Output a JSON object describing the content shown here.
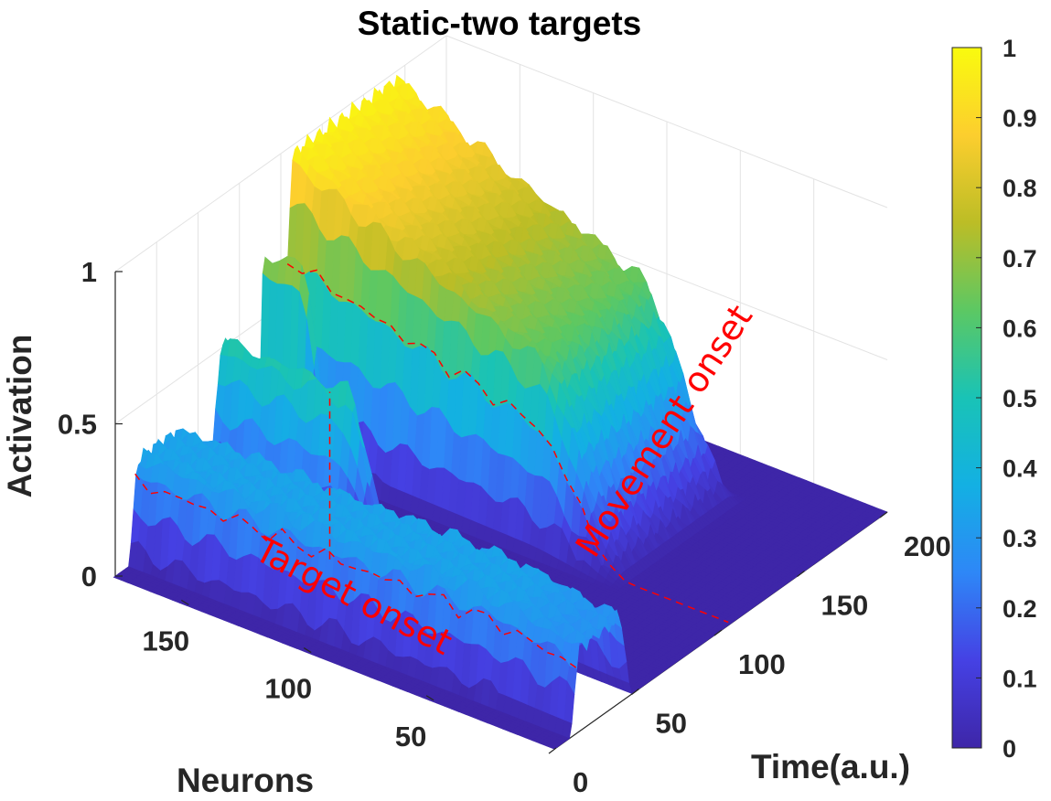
{
  "chart_data": {
    "type": "surface",
    "title": "Static-two targets",
    "xlabel": "Neurons",
    "ylabel": "Time(a.u.)",
    "zlabel": "Activation",
    "xlim": [
      0,
      180
    ],
    "ylim": [
      0,
      200
    ],
    "zlim": [
      0,
      1
    ],
    "xticks": [
      "50",
      "100",
      "150"
    ],
    "yticks": [
      "0",
      "50",
      "100",
      "150",
      "200"
    ],
    "zticks": [
      "0",
      "0.5",
      "1"
    ],
    "grid": true,
    "colormap": "parula",
    "colormap_colors": [
      "#3e26a8",
      "#4541e4",
      "#2e87f7",
      "#13b0e3",
      "#19c3b6",
      "#5cc863",
      "#bcbd26",
      "#fcce2e",
      "#f9fb0e"
    ],
    "colorbar": {
      "limits": [
        0,
        1
      ],
      "ticks": [
        "0",
        "0.1",
        "0.2",
        "0.3",
        "0.4",
        "0.5",
        "0.6",
        "0.7",
        "0.8",
        "0.9",
        "1"
      ]
    },
    "annotations": [
      "Target onset",
      "Movement onset"
    ],
    "annotation_color": "#ff0000",
    "surface_features": [
      {
        "feature": "target-onset plateau",
        "time_range": [
          10,
          45
        ],
        "neurons": [
          0,
          180
        ],
        "activation": 0.35
      },
      {
        "feature": "target bump",
        "time_range": [
          55,
          75
        ],
        "neurons": [
          120,
          180
        ],
        "activation": 0.55
      },
      {
        "feature": "narrow peak",
        "time_range": [
          85,
          95
        ],
        "neurons": [
          150,
          180
        ],
        "activation": 0.75
      },
      {
        "feature": "movement ramp",
        "time_range": [
          100,
          175
        ],
        "neurons": [
          50,
          180
        ],
        "activation_start": 0.4,
        "activation_end": 0.95
      }
    ]
  }
}
